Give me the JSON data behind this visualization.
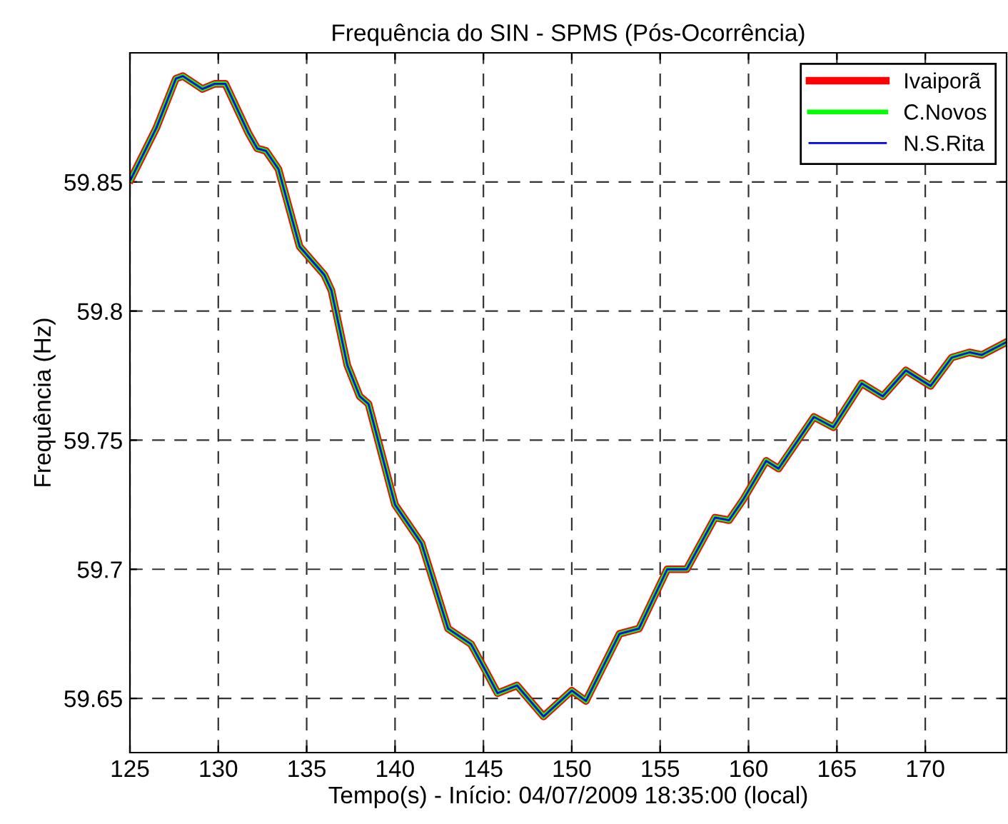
{
  "chart_data": {
    "type": "line",
    "title": "Frequência do SIN - SPMS (Pós-Ocorrência)",
    "xlabel": "Tempo(s) - Início: 04/07/2009 18:35:00 (local)",
    "ylabel": "Frequência (Hz)",
    "x": [
      125.05,
      126.5,
      127.6,
      128.0,
      129.1,
      129.8,
      130.4,
      131.7,
      132.2,
      132.7,
      133.4,
      134.6,
      136.0,
      136.4,
      137.3,
      138.0,
      138.5,
      140.0,
      141.5,
      143.0,
      144.3,
      145.1,
      145.8,
      146.9,
      148.4,
      150.0,
      150.8,
      152.7,
      153.8,
      155.4,
      156.5,
      158.1,
      158.9,
      159.7,
      161.0,
      161.7,
      163.7,
      164.8,
      166.4,
      167.6,
      168.9,
      170.3,
      171.5,
      172.5,
      173.2,
      174.6
    ],
    "series": [
      {
        "name": "Ivaiporã",
        "color": "#ff0000",
        "values": [
          59.851,
          59.871,
          59.89,
          59.891,
          59.886,
          59.888,
          59.888,
          59.869,
          59.863,
          59.862,
          59.855,
          59.825,
          59.814,
          59.808,
          59.779,
          59.767,
          59.764,
          59.725,
          59.71,
          59.677,
          59.671,
          59.661,
          59.652,
          59.655,
          59.643,
          59.653,
          59.649,
          59.675,
          59.677,
          59.7,
          59.7,
          59.72,
          59.719,
          59.727,
          59.742,
          59.739,
          59.759,
          59.755,
          59.772,
          59.767,
          59.777,
          59.771,
          59.782,
          59.784,
          59.783,
          59.788
        ]
      },
      {
        "name": "C.Novos",
        "color": "#00ff00",
        "values": [
          59.851,
          59.871,
          59.89,
          59.891,
          59.886,
          59.888,
          59.888,
          59.869,
          59.863,
          59.862,
          59.855,
          59.825,
          59.814,
          59.808,
          59.779,
          59.767,
          59.764,
          59.725,
          59.71,
          59.677,
          59.671,
          59.661,
          59.652,
          59.655,
          59.643,
          59.653,
          59.649,
          59.675,
          59.677,
          59.7,
          59.7,
          59.72,
          59.719,
          59.727,
          59.742,
          59.739,
          59.759,
          59.755,
          59.772,
          59.767,
          59.777,
          59.771,
          59.782,
          59.784,
          59.783,
          59.788
        ]
      },
      {
        "name": "N.S.Rita",
        "color": "#0000ff",
        "values": [
          59.851,
          59.871,
          59.89,
          59.891,
          59.886,
          59.888,
          59.888,
          59.869,
          59.863,
          59.862,
          59.855,
          59.825,
          59.814,
          59.808,
          59.779,
          59.767,
          59.764,
          59.725,
          59.71,
          59.677,
          59.671,
          59.661,
          59.652,
          59.655,
          59.643,
          59.653,
          59.649,
          59.675,
          59.677,
          59.7,
          59.7,
          59.72,
          59.719,
          59.727,
          59.742,
          59.739,
          59.759,
          59.755,
          59.772,
          59.767,
          59.777,
          59.771,
          59.782,
          59.784,
          59.783,
          59.788
        ]
      }
    ],
    "xlim": [
      125,
      174.6
    ],
    "xticks": [
      125,
      130,
      135,
      140,
      145,
      150,
      155,
      160,
      165,
      170
    ],
    "ylim": [
      59.629,
      59.9
    ],
    "yticks": [
      59.65,
      59.7,
      59.75,
      59.8,
      59.85
    ],
    "grid": true,
    "legend": "top right",
    "line_style": "solid",
    "marker": "none"
  }
}
